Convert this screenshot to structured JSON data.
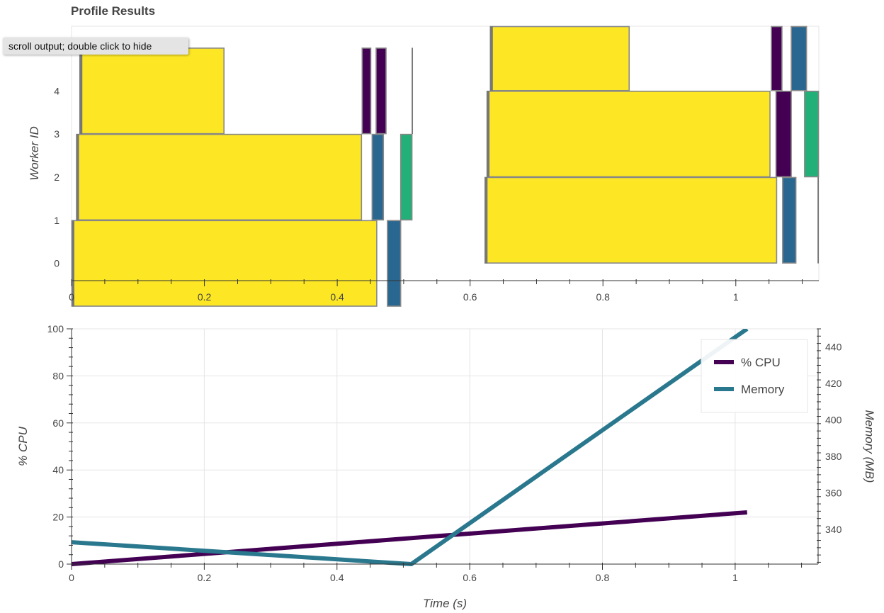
{
  "title": "Profile Results",
  "tooltip": "scroll output; double click to hide",
  "chart_data": [
    {
      "type": "gantt",
      "ylabel": "Worker ID",
      "xlim": [
        0,
        1.125
      ],
      "ylim": [
        -0.4,
        5.5
      ],
      "xticks": [
        0,
        0.2,
        0.4,
        0.6,
        0.8,
        1
      ],
      "xtick_labels": [
        "0",
        "0.2",
        "0.4",
        "0.6",
        "0.8",
        "1"
      ],
      "yticks": [
        0,
        1,
        2,
        3,
        4
      ],
      "colors": {
        "yellow": "#fde725",
        "purple": "#440154",
        "blue": "#2a6790",
        "green": "#22b078",
        "gray": "#777777"
      },
      "tasks": [
        {
          "worker": 0,
          "start": 0.0,
          "end": 0.46,
          "color": "yellow"
        },
        {
          "worker": 0,
          "start": 0.475,
          "end": 0.496,
          "color": "blue"
        },
        {
          "worker": 2,
          "start": 0.007,
          "end": 0.437,
          "color": "yellow"
        },
        {
          "worker": 2,
          "start": 0.452,
          "end": 0.47,
          "color": "blue"
        },
        {
          "worker": 2,
          "start": 0.495,
          "end": 0.513,
          "color": "green"
        },
        {
          "worker": 4,
          "start": 0.012,
          "end": 0.23,
          "color": "yellow"
        },
        {
          "worker": 4,
          "start": 0.437,
          "end": 0.451,
          "color": "purple"
        },
        {
          "worker": 4,
          "start": 0.458,
          "end": 0.474,
          "color": "purple"
        },
        {
          "worker": 4,
          "start": 0.512,
          "end": 0.514,
          "color": "gray"
        },
        {
          "worker": 1,
          "start": 0.622,
          "end": 1.062,
          "color": "yellow"
        },
        {
          "worker": 1,
          "start": 1.07,
          "end": 1.091,
          "color": "blue"
        },
        {
          "worker": 1,
          "start": 1.123,
          "end": 1.126,
          "color": "gray"
        },
        {
          "worker": 3,
          "start": 0.625,
          "end": 1.052,
          "color": "yellow"
        },
        {
          "worker": 3,
          "start": 1.06,
          "end": 1.084,
          "color": "purple"
        },
        {
          "worker": 3,
          "start": 1.103,
          "end": 1.125,
          "color": "green"
        },
        {
          "worker": 5,
          "start": 0.63,
          "end": 0.84,
          "color": "yellow"
        },
        {
          "worker": 5,
          "start": 1.053,
          "end": 1.07,
          "color": "purple"
        },
        {
          "worker": 5,
          "start": 1.083,
          "end": 1.107,
          "color": "blue"
        }
      ]
    },
    {
      "type": "line",
      "xlabel": "Time (s)",
      "ylabel": "% CPU",
      "y2label": "Memory (MB)",
      "xlim": [
        0,
        1.125
      ],
      "ylim": [
        0,
        100
      ],
      "y2lim": [
        321,
        450
      ],
      "xticks": [
        0,
        0.2,
        0.4,
        0.6,
        0.8,
        1
      ],
      "xtick_labels": [
        "0",
        "0.2",
        "0.4",
        "0.6",
        "0.8",
        "1"
      ],
      "yticks": [
        0,
        20,
        40,
        60,
        80,
        100
      ],
      "y2ticks": [
        340,
        360,
        380,
        400,
        420,
        440
      ],
      "grid": true,
      "legend_position": "top-right",
      "series": [
        {
          "name": "% CPU",
          "axis": "left",
          "color": "#440154",
          "x": [
            0,
            1.018
          ],
          "y": [
            0,
            22
          ]
        },
        {
          "name": "Memory",
          "axis": "right",
          "color": "#2a788e",
          "x": [
            0,
            0.512,
            1.018
          ],
          "y": [
            333,
            321,
            450
          ]
        }
      ]
    }
  ]
}
